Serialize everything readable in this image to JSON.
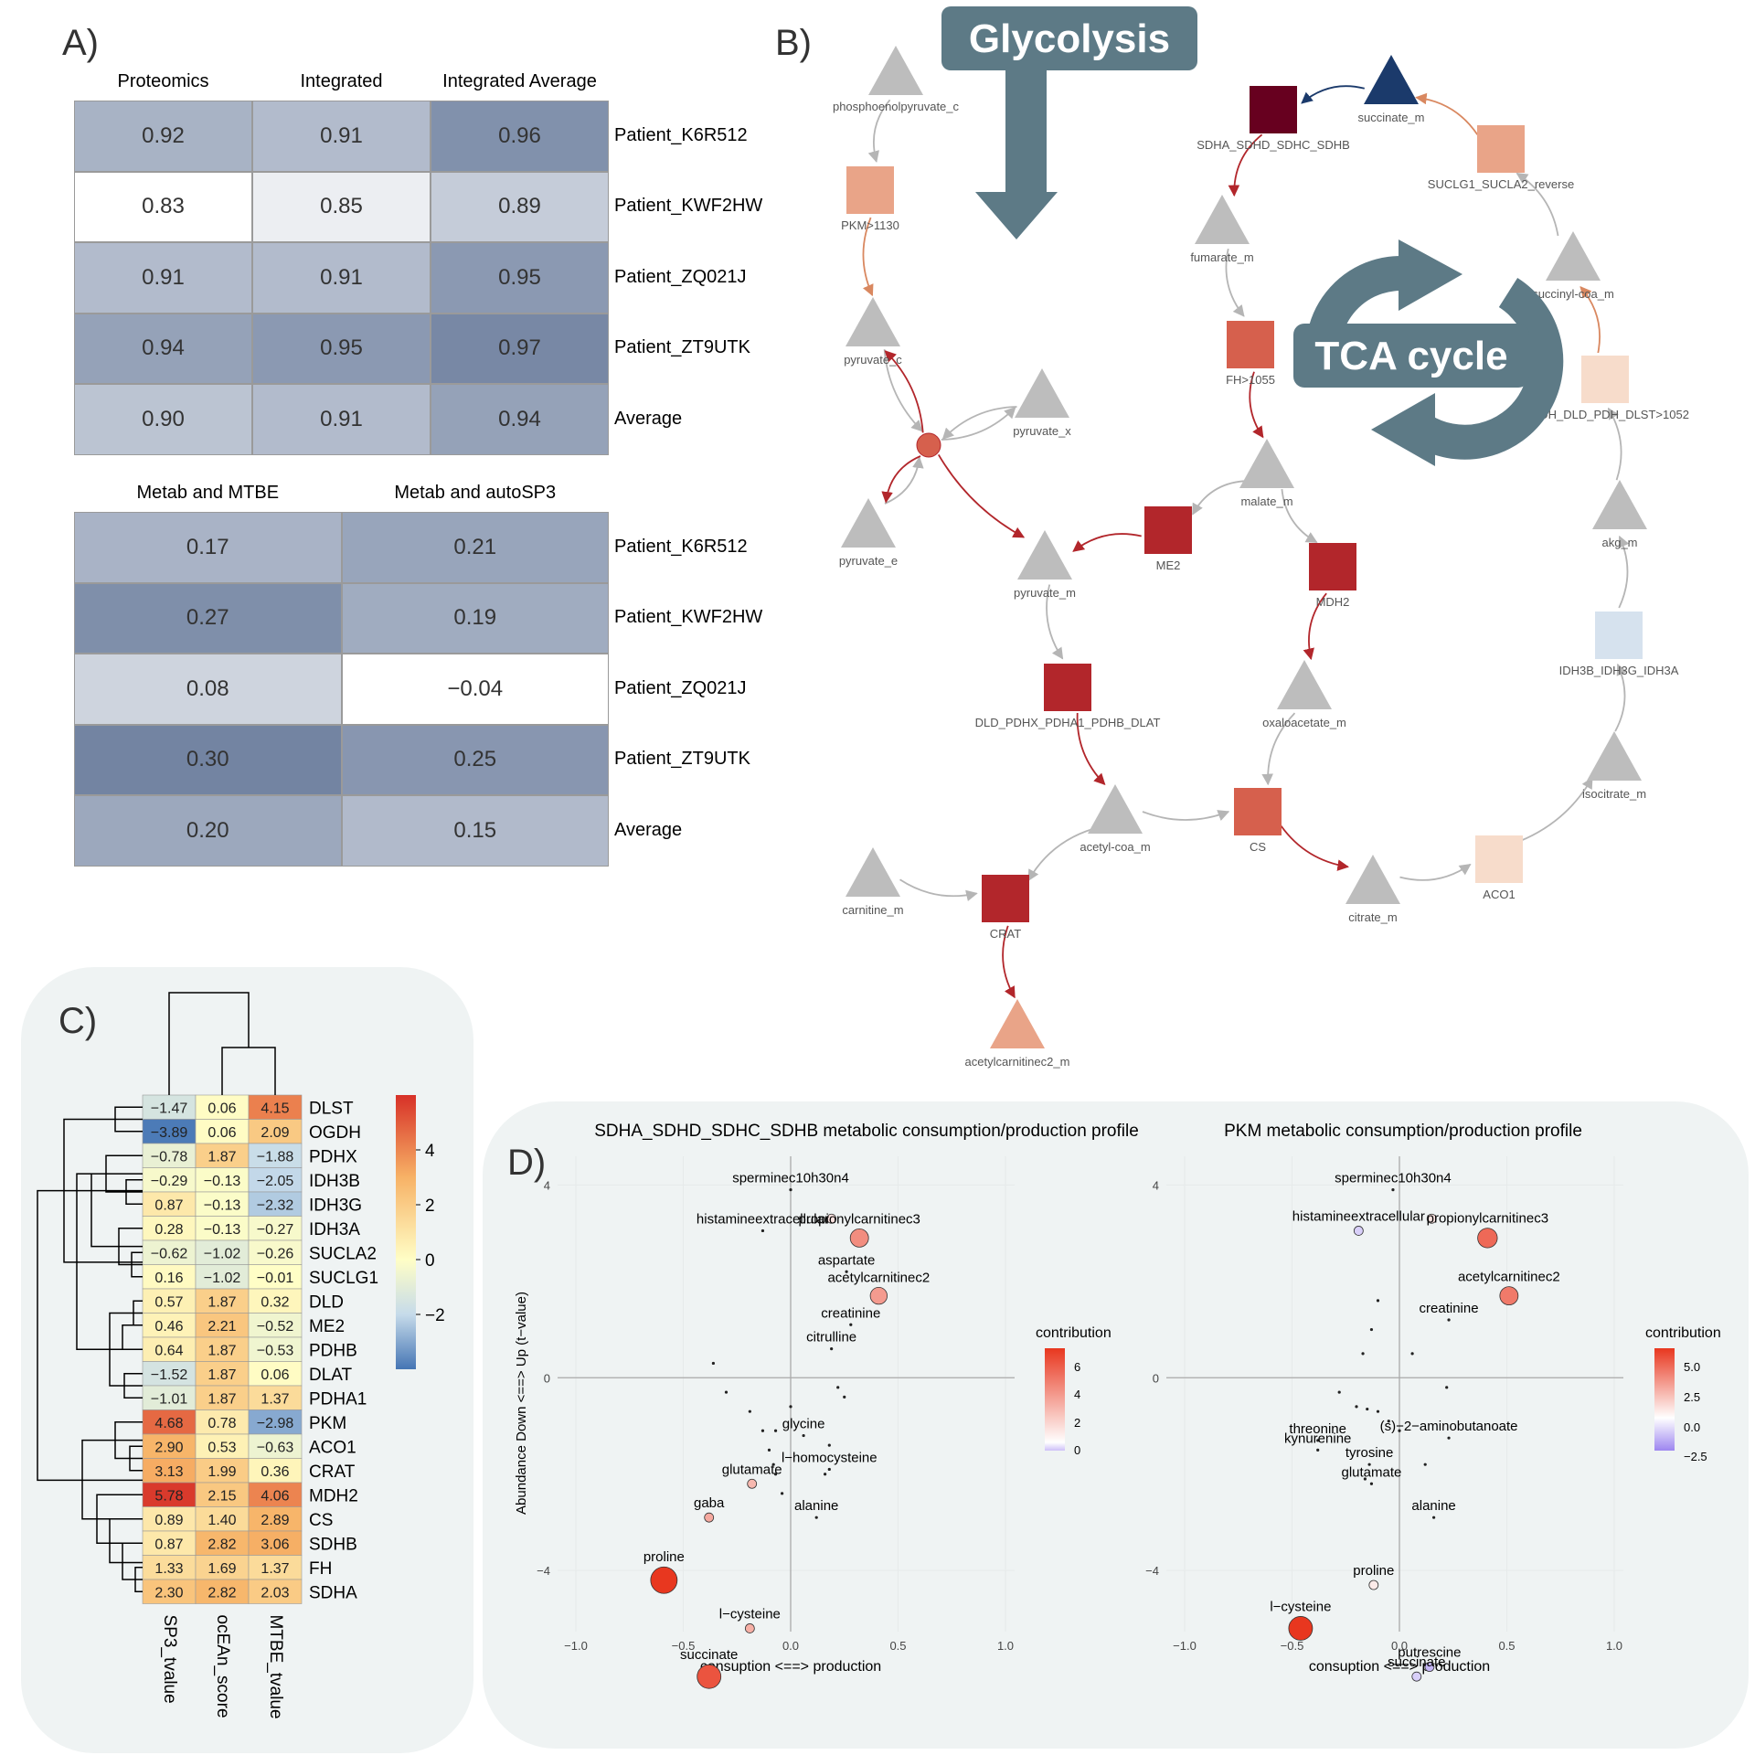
{
  "panels": {
    "a": "A)",
    "b": "B)",
    "c": "C)",
    "d": "D)"
  },
  "panel_a": {
    "table1": {
      "columns": [
        "Proteomics",
        "Integrated",
        "Integrated Average"
      ],
      "rows": [
        {
          "label": "Patient_K6R512",
          "values": [
            "0.92",
            "0.91",
            "0.96"
          ],
          "num": [
            0.92,
            0.91,
            0.96
          ]
        },
        {
          "label": "Patient_KWF2HW",
          "values": [
            "0.83",
            "0.85",
            "0.89"
          ],
          "num": [
            0.83,
            0.85,
            0.89
          ]
        },
        {
          "label": "Patient_ZQ021J",
          "values": [
            "0.91",
            "0.91",
            "0.95"
          ],
          "num": [
            0.91,
            0.91,
            0.95
          ]
        },
        {
          "label": "Patient_ZT9UTK",
          "values": [
            "0.94",
            "0.95",
            "0.97"
          ],
          "num": [
            0.94,
            0.95,
            0.97
          ]
        },
        {
          "label": "Average",
          "values": [
            "0.90",
            "0.91",
            "0.94"
          ],
          "num": [
            0.9,
            0.91,
            0.94
          ]
        }
      ]
    },
    "table2": {
      "columns": [
        "Metab and MTBE",
        "Metab and autoSP3"
      ],
      "rows": [
        {
          "label": "Patient_K6R512",
          "values": [
            "0.17",
            "0.21"
          ],
          "num": [
            0.17,
            0.21
          ]
        },
        {
          "label": "Patient_KWF2HW",
          "values": [
            "0.27",
            "0.19"
          ],
          "num": [
            0.27,
            0.19
          ]
        },
        {
          "label": "Patient_ZQ021J",
          "values": [
            "0.08",
            "−0.04"
          ],
          "num": [
            0.08,
            -0.04
          ]
        },
        {
          "label": "Patient_ZT9UTK",
          "values": [
            "0.30",
            "0.25"
          ],
          "num": [
            0.3,
            0.25
          ]
        },
        {
          "label": "Average",
          "values": [
            "0.20",
            "0.15"
          ],
          "num": [
            0.2,
            0.15
          ]
        }
      ]
    }
  },
  "panel_b": {
    "banner_glycolysis": "Glycolysis",
    "banner_tca": "TCA cycle",
    "nodes": [
      {
        "id": "pep",
        "label": "phosphoenolpyruvate_c",
        "shape": "triangle",
        "color": "#bdbdbd"
      },
      {
        "id": "pkm",
        "label": "PKM>1130",
        "shape": "square",
        "color": "#e9a488"
      },
      {
        "id": "pyrc",
        "label": "pyruvate_c",
        "shape": "triangle",
        "color": "#bdbdbd"
      },
      {
        "id": "pyrx",
        "label": "pyruvate_x",
        "shape": "triangle",
        "color": "#bdbdbd"
      },
      {
        "id": "hub",
        "label": "",
        "shape": "circle",
        "color": "#d6604d"
      },
      {
        "id": "pyre",
        "label": "pyruvate_e",
        "shape": "triangle",
        "color": "#bdbdbd"
      },
      {
        "id": "pyrm",
        "label": "pyruvate_m",
        "shape": "triangle",
        "color": "#bdbdbd"
      },
      {
        "id": "pdh",
        "label": "DLD_PDHX_PDHA1_PDHB_DLAT",
        "shape": "square",
        "color": "#b2262b"
      },
      {
        "id": "acoa",
        "label": "acetyl-coa_m",
        "shape": "triangle",
        "color": "#bdbdbd"
      },
      {
        "id": "carn",
        "label": "carnitine_m",
        "shape": "triangle",
        "color": "#bdbdbd"
      },
      {
        "id": "crat",
        "label": "CRAT",
        "shape": "square",
        "color": "#b2262b"
      },
      {
        "id": "acar",
        "label": "acetylcarnitinec2_m",
        "shape": "triangle",
        "color": "#e9a488"
      },
      {
        "id": "me2",
        "label": "ME2",
        "shape": "square",
        "color": "#b2262b"
      },
      {
        "id": "mal",
        "label": "malate_m",
        "shape": "triangle",
        "color": "#bdbdbd"
      },
      {
        "id": "fh",
        "label": "FH>1055",
        "shape": "square",
        "color": "#d6604d"
      },
      {
        "id": "fum",
        "label": "fumarate_m",
        "shape": "triangle",
        "color": "#bdbdbd"
      },
      {
        "id": "sdh",
        "label": "SDHA_SDHD_SDHC_SDHB",
        "shape": "square",
        "color": "#67001f"
      },
      {
        "id": "succ",
        "label": "succinate_m",
        "shape": "triangle",
        "color": "#1b3a6b"
      },
      {
        "id": "sucl",
        "label": "SUCLG1_SUCLA2_reverse",
        "shape": "square",
        "color": "#e9a488"
      },
      {
        "id": "scoa",
        "label": "succinyl-coa_m",
        "shape": "triangle",
        "color": "#bdbdbd"
      },
      {
        "id": "ogdh",
        "label": "OGDH_DLD_PDH_DLST>1052",
        "shape": "square",
        "color": "#f7dccb"
      },
      {
        "id": "akg",
        "label": "akg_m",
        "shape": "triangle",
        "color": "#bdbdbd"
      },
      {
        "id": "idh",
        "label": "IDH3B_IDH3G_IDH3A",
        "shape": "square",
        "color": "#d6e2ee"
      },
      {
        "id": "isoc",
        "label": "isocitrate_m",
        "shape": "triangle",
        "color": "#bdbdbd"
      },
      {
        "id": "aco1",
        "label": "ACO1",
        "shape": "square",
        "color": "#f7dccb"
      },
      {
        "id": "cit",
        "label": "citrate_m",
        "shape": "triangle",
        "color": "#bdbdbd"
      },
      {
        "id": "cs",
        "label": "CS",
        "shape": "square",
        "color": "#d6604d"
      },
      {
        "id": "oaa",
        "label": "oxaloacetate_m",
        "shape": "triangle",
        "color": "#bdbdbd"
      },
      {
        "id": "mdh2",
        "label": "MDH2",
        "shape": "square",
        "color": "#b2262b"
      }
    ]
  },
  "panel_c": {
    "rows": [
      "DLST",
      "OGDH",
      "PDHX",
      "IDH3B",
      "IDH3G",
      "IDH3A",
      "SUCLA2",
      "SUCLG1",
      "DLD",
      "ME2",
      "PDHB",
      "DLAT",
      "PDHA1",
      "PKM",
      "ACO1",
      "CRAT",
      "MDH2",
      "CS",
      "SDHB",
      "FH",
      "SDHA"
    ],
    "columns": [
      "SP3_tvalue",
      "ocEAn_score",
      "MTBE_tvalue"
    ],
    "values": [
      [
        -1.47,
        0.06,
        4.15
      ],
      [
        -3.89,
        0.06,
        2.09
      ],
      [
        -0.78,
        1.87,
        -1.88
      ],
      [
        -0.29,
        -0.13,
        -2.05
      ],
      [
        0.87,
        -0.13,
        -2.32
      ],
      [
        0.28,
        -0.13,
        -0.27
      ],
      [
        -0.62,
        -1.02,
        -0.26
      ],
      [
        0.16,
        -1.02,
        -0.01
      ],
      [
        0.57,
        1.87,
        0.32
      ],
      [
        0.46,
        2.21,
        -0.52
      ],
      [
        0.64,
        1.87,
        -0.53
      ],
      [
        -1.52,
        1.87,
        0.06
      ],
      [
        -1.01,
        1.87,
        1.37
      ],
      [
        4.68,
        0.78,
        -2.98
      ],
      [
        2.9,
        0.53,
        -0.63
      ],
      [
        3.13,
        1.99,
        0.36
      ],
      [
        5.78,
        2.15,
        4.06
      ],
      [
        0.89,
        1.4,
        2.89
      ],
      [
        0.87,
        2.82,
        3.06
      ],
      [
        1.33,
        1.69,
        1.37
      ],
      [
        2.3,
        2.82,
        2.03
      ]
    ],
    "labels": [
      [
        "−1.47",
        "0.06",
        "4.15"
      ],
      [
        "−3.89",
        "0.06",
        "2.09"
      ],
      [
        "−0.78",
        "1.87",
        "−1.88"
      ],
      [
        "−0.29",
        "−0.13",
        "−2.05"
      ],
      [
        "0.87",
        "−0.13",
        "−2.32"
      ],
      [
        "0.28",
        "−0.13",
        "−0.27"
      ],
      [
        "−0.62",
        "−1.02",
        "−0.26"
      ],
      [
        "0.16",
        "−1.02",
        "−0.01"
      ],
      [
        "0.57",
        "1.87",
        "0.32"
      ],
      [
        "0.46",
        "2.21",
        "−0.52"
      ],
      [
        "0.64",
        "1.87",
        "−0.53"
      ],
      [
        "−1.52",
        "1.87",
        "0.06"
      ],
      [
        "−1.01",
        "1.87",
        "1.37"
      ],
      [
        "4.68",
        "0.78",
        "−2.98"
      ],
      [
        "2.90",
        "0.53",
        "−0.63"
      ],
      [
        "3.13",
        "1.99",
        "0.36"
      ],
      [
        "5.78",
        "2.15",
        "4.06"
      ],
      [
        "0.89",
        "1.40",
        "2.89"
      ],
      [
        "0.87",
        "2.82",
        "3.06"
      ],
      [
        "1.33",
        "1.69",
        "1.37"
      ],
      [
        "2.30",
        "2.82",
        "2.03"
      ]
    ],
    "colorbar_ticks": [
      "4",
      "2",
      "0",
      "−2"
    ],
    "colorbar_range": [
      -4,
      6
    ]
  },
  "chart_data": [
    {
      "type": "scatter",
      "title": "SDHA_SDHD_SDHC_SDHB metabolic consumption/production profile",
      "xlabel": "consuption <==> production",
      "ylabel": "Abundance Down <==> Up (t−value)",
      "xlim": [
        -1.0,
        1.0
      ],
      "ylim": [
        -6.5,
        4.5
      ],
      "xticks": [
        "−1.0",
        "−0.5",
        "0.0",
        "0.5",
        "1.0"
      ],
      "yticks": [
        "4",
        "0",
        "−4"
      ],
      "legend_title": "contribution",
      "legend_ticks": [
        "6",
        "4",
        "2",
        "0"
      ],
      "points": [
        {
          "x": 0.0,
          "y": 3.9,
          "c": 0.2,
          "label": "sperminec10h30n4"
        },
        {
          "x": 0.19,
          "y": 3.3,
          "c": 1.0,
          "label": ""
        },
        {
          "x": -0.13,
          "y": 3.05,
          "c": 0.3,
          "label": "histamineextracellular"
        },
        {
          "x": 0.32,
          "y": 2.9,
          "c": 4.0,
          "label": "propionylcarnitinec3"
        },
        {
          "x": 0.26,
          "y": 2.2,
          "c": 0.4,
          "label": "aspartate"
        },
        {
          "x": 0.41,
          "y": 1.7,
          "c": 3.5,
          "label": "acetylcarnitinec2"
        },
        {
          "x": 0.28,
          "y": 1.1,
          "c": 0.4,
          "label": "creatinine"
        },
        {
          "x": 0.19,
          "y": 0.6,
          "c": 0.3,
          "label": "citrulline"
        },
        {
          "x": -0.18,
          "y": -2.2,
          "c": 2.5,
          "label": "glutamate"
        },
        {
          "x": -0.38,
          "y": -2.9,
          "c": 3.0,
          "label": "gaba"
        },
        {
          "x": 0.06,
          "y": -1.2,
          "c": 0.2,
          "label": "glycine"
        },
        {
          "x": 0.18,
          "y": -1.9,
          "c": 0.3,
          "label": "l−homocysteine"
        },
        {
          "x": 0.12,
          "y": -2.9,
          "c": 0.2,
          "label": "alanine"
        },
        {
          "x": -0.59,
          "y": -4.2,
          "c": 7.0,
          "label": "proline"
        },
        {
          "x": -0.19,
          "y": -5.2,
          "c": 2.8,
          "label": "l−cysteine"
        },
        {
          "x": -0.38,
          "y": -6.2,
          "c": 6.0,
          "label": "succinate"
        }
      ]
    },
    {
      "type": "scatter",
      "title": "PKM metabolic consumption/production profile",
      "xlabel": "consuption <==> production",
      "ylabel": "",
      "xlim": [
        -1.0,
        1.0
      ],
      "ylim": [
        -6.5,
        4.5
      ],
      "xticks": [
        "−1.0",
        "−0.5",
        "0.0",
        "0.5",
        "1.0"
      ],
      "yticks": [
        "4",
        "0",
        "−4"
      ],
      "legend_title": "contribution",
      "legend_ticks": [
        "5.0",
        "2.5",
        "0.0",
        "−2.5"
      ],
      "points": [
        {
          "x": -0.03,
          "y": 3.9,
          "c": 0.2,
          "label": "sperminec10h30n4"
        },
        {
          "x": 0.15,
          "y": 3.3,
          "c": 0.8,
          "label": ""
        },
        {
          "x": -0.19,
          "y": 3.05,
          "c": -1.0,
          "label": "histamineextracellular"
        },
        {
          "x": 0.41,
          "y": 2.9,
          "c": 4.5,
          "label": "propionylcarnitinec3"
        },
        {
          "x": 0.51,
          "y": 1.7,
          "c": 4.0,
          "label": "acetylcarnitinec2"
        },
        {
          "x": 0.23,
          "y": 1.2,
          "c": 0.4,
          "label": "creatinine"
        },
        {
          "x": -0.38,
          "y": -1.3,
          "c": 0.3,
          "label": "threonine"
        },
        {
          "x": 0.23,
          "y": -1.25,
          "c": 0.3,
          "label": "(s)−2−aminobutanoate"
        },
        {
          "x": -0.38,
          "y": -1.5,
          "c": 0.3,
          "label": "kynurenine"
        },
        {
          "x": -0.14,
          "y": -1.8,
          "c": 0.3,
          "label": "tyrosine"
        },
        {
          "x": -0.13,
          "y": -2.2,
          "c": 0.2,
          "label": "glutamate"
        },
        {
          "x": 0.16,
          "y": -2.9,
          "c": 0.2,
          "label": "alanine"
        },
        {
          "x": -0.12,
          "y": -4.3,
          "c": 0.6,
          "label": "proline"
        },
        {
          "x": -0.46,
          "y": -5.2,
          "c": 6.0,
          "label": "l−cysteine"
        },
        {
          "x": 0.14,
          "y": -6.0,
          "c": -1.5,
          "label": "putrescine"
        },
        {
          "x": 0.08,
          "y": -6.2,
          "c": -1.0,
          "label": "succinate"
        }
      ]
    }
  ]
}
